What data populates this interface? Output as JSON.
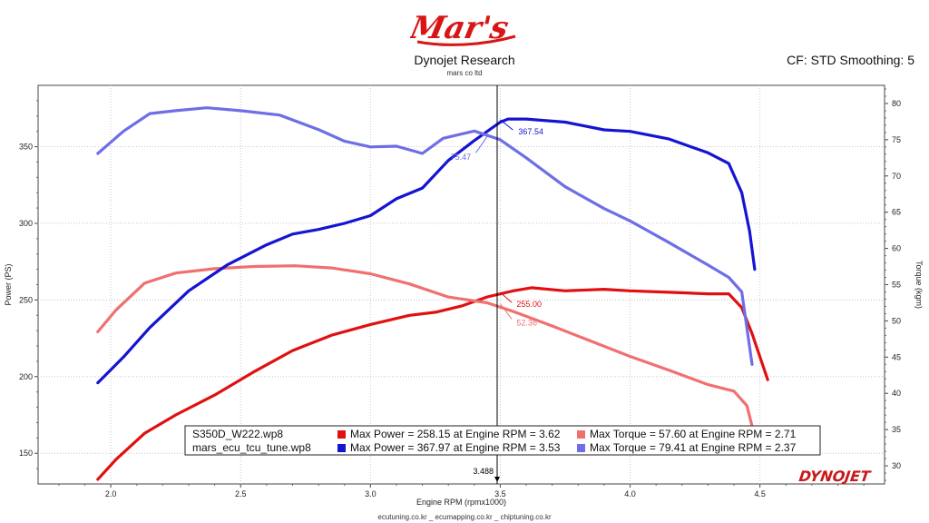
{
  "header": {
    "logo_text": "Mar's",
    "title": "Dynojet Research",
    "subtitle": "mars co ltd",
    "cf_text": "CF: STD Smoothing: 5"
  },
  "footer": {
    "text": "ecutuning.co.kr _ ecumapping.co.kr _ chiptuning.co.kr"
  },
  "brand": {
    "text": "DYNOJET"
  },
  "colors": {
    "power_run1": "#e01010",
    "torque_run1": "#f07070",
    "power_run2": "#1414d2",
    "torque_run2": "#6e6ee6"
  },
  "chart_data": {
    "type": "line",
    "xlabel": "Engine RPM (rpmx1000)",
    "ylabel": "Power (PS)",
    "y2label": "Torque (kgm)",
    "xlim": [
      1.72,
      4.98
    ],
    "ylim": [
      130,
      390
    ],
    "y2lim": [
      27.5,
      82.5
    ],
    "xticks": [
      "2.0",
      "2.5",
      "3.0",
      "3.5",
      "4.0",
      "4.5"
    ],
    "yticks": [
      "150",
      "200",
      "250",
      "300",
      "350"
    ],
    "y2ticks": [
      "30",
      "35",
      "40",
      "45",
      "50",
      "55",
      "60",
      "65",
      "70",
      "75",
      "80"
    ],
    "grid": true,
    "cursor": {
      "x": 3.488,
      "label": "3.488"
    },
    "series": [
      {
        "name": "S350D_W222.wp8 Power",
        "axis": "left",
        "color_key": "power_run1",
        "x": [
          1.95,
          2.02,
          2.13,
          2.25,
          2.4,
          2.55,
          2.7,
          2.85,
          3.0,
          3.15,
          3.25,
          3.35,
          3.45,
          3.55,
          3.62,
          3.75,
          3.9,
          4.0,
          4.15,
          4.3,
          4.38,
          4.43,
          4.47,
          4.5,
          4.53
        ],
        "y": [
          133,
          146,
          163,
          175,
          188,
          203,
          217,
          227,
          234,
          240,
          242,
          246,
          252,
          256,
          258,
          256,
          257,
          256,
          255,
          254,
          254,
          245,
          228,
          213,
          198
        ]
      },
      {
        "name": "S350D_W222.wp8 Torque",
        "axis": "right",
        "color_key": "torque_run1",
        "x": [
          1.95,
          2.02,
          2.13,
          2.25,
          2.4,
          2.55,
          2.71,
          2.85,
          3.0,
          3.15,
          3.3,
          3.45,
          3.55,
          3.7,
          3.85,
          4.0,
          4.15,
          4.3,
          4.4,
          4.45,
          4.48
        ],
        "y": [
          48.5,
          51.5,
          55.2,
          56.6,
          57.2,
          57.5,
          57.6,
          57.3,
          56.5,
          55.1,
          53.3,
          52.5,
          51.3,
          49.3,
          47.2,
          45.1,
          43.2,
          41.2,
          40.3,
          38.3,
          34.0
        ]
      },
      {
        "name": "mars_ecu_tcu_tune.wp8 Power",
        "axis": "left",
        "color_key": "power_run2",
        "x": [
          1.95,
          2.05,
          2.15,
          2.3,
          2.45,
          2.6,
          2.7,
          2.8,
          2.9,
          3.0,
          3.1,
          3.2,
          3.3,
          3.4,
          3.5,
          3.53,
          3.6,
          3.75,
          3.9,
          4.0,
          4.15,
          4.3,
          4.38,
          4.43,
          4.46,
          4.48
        ],
        "y": [
          196,
          213,
          232,
          256,
          273,
          286,
          293,
          296,
          300,
          305,
          316,
          323,
          341,
          354,
          366,
          368,
          368,
          366,
          361,
          360,
          355,
          346,
          339,
          320,
          295,
          270
        ]
      },
      {
        "name": "mars_ecu_tcu_tune.wp8 Torque",
        "axis": "right",
        "color_key": "torque_run2",
        "x": [
          1.95,
          2.05,
          2.15,
          2.25,
          2.37,
          2.5,
          2.65,
          2.8,
          2.9,
          3.0,
          3.1,
          3.2,
          3.28,
          3.4,
          3.5,
          3.6,
          3.75,
          3.9,
          4.0,
          4.15,
          4.3,
          4.38,
          4.43,
          4.47
        ],
        "y": [
          73.1,
          76.2,
          78.6,
          79.0,
          79.41,
          79.0,
          78.4,
          76.4,
          74.8,
          74.0,
          74.1,
          73.1,
          75.2,
          76.2,
          75.0,
          72.5,
          68.5,
          65.5,
          63.8,
          60.8,
          57.7,
          56.0,
          54.0,
          44.0
        ]
      }
    ],
    "annotations": [
      {
        "text": "367.54",
        "x": 3.5,
        "y": 367.54,
        "axis": "left",
        "color_key": "power_run2"
      },
      {
        "text": "75.47",
        "x": 3.45,
        "y": 75.47,
        "axis": "right",
        "color_key": "torque_run2"
      },
      {
        "text": "255.00",
        "x": 3.5,
        "y": 255.0,
        "axis": "left",
        "color_key": "power_run1"
      },
      {
        "text": "52.36",
        "x": 3.5,
        "y": 52.36,
        "axis": "right",
        "color_key": "torque_run1"
      }
    ],
    "legend": {
      "placement": "bottom-center",
      "rows": [
        {
          "file": "S350D_W222.wp8",
          "power_text": "Max Power = 258.15 at Engine RPM = 3.62",
          "torque_text": "Max Torque = 57.60 at Engine RPM = 2.71",
          "power_color_key": "power_run1",
          "torque_color_key": "torque_run1"
        },
        {
          "file": "mars_ecu_tcu_tune.wp8",
          "power_text": "Max Power = 367.97 at Engine RPM = 3.53",
          "torque_text": "Max Torque = 79.41 at Engine RPM = 2.37",
          "power_color_key": "power_run2",
          "torque_color_key": "torque_run2"
        }
      ]
    }
  }
}
